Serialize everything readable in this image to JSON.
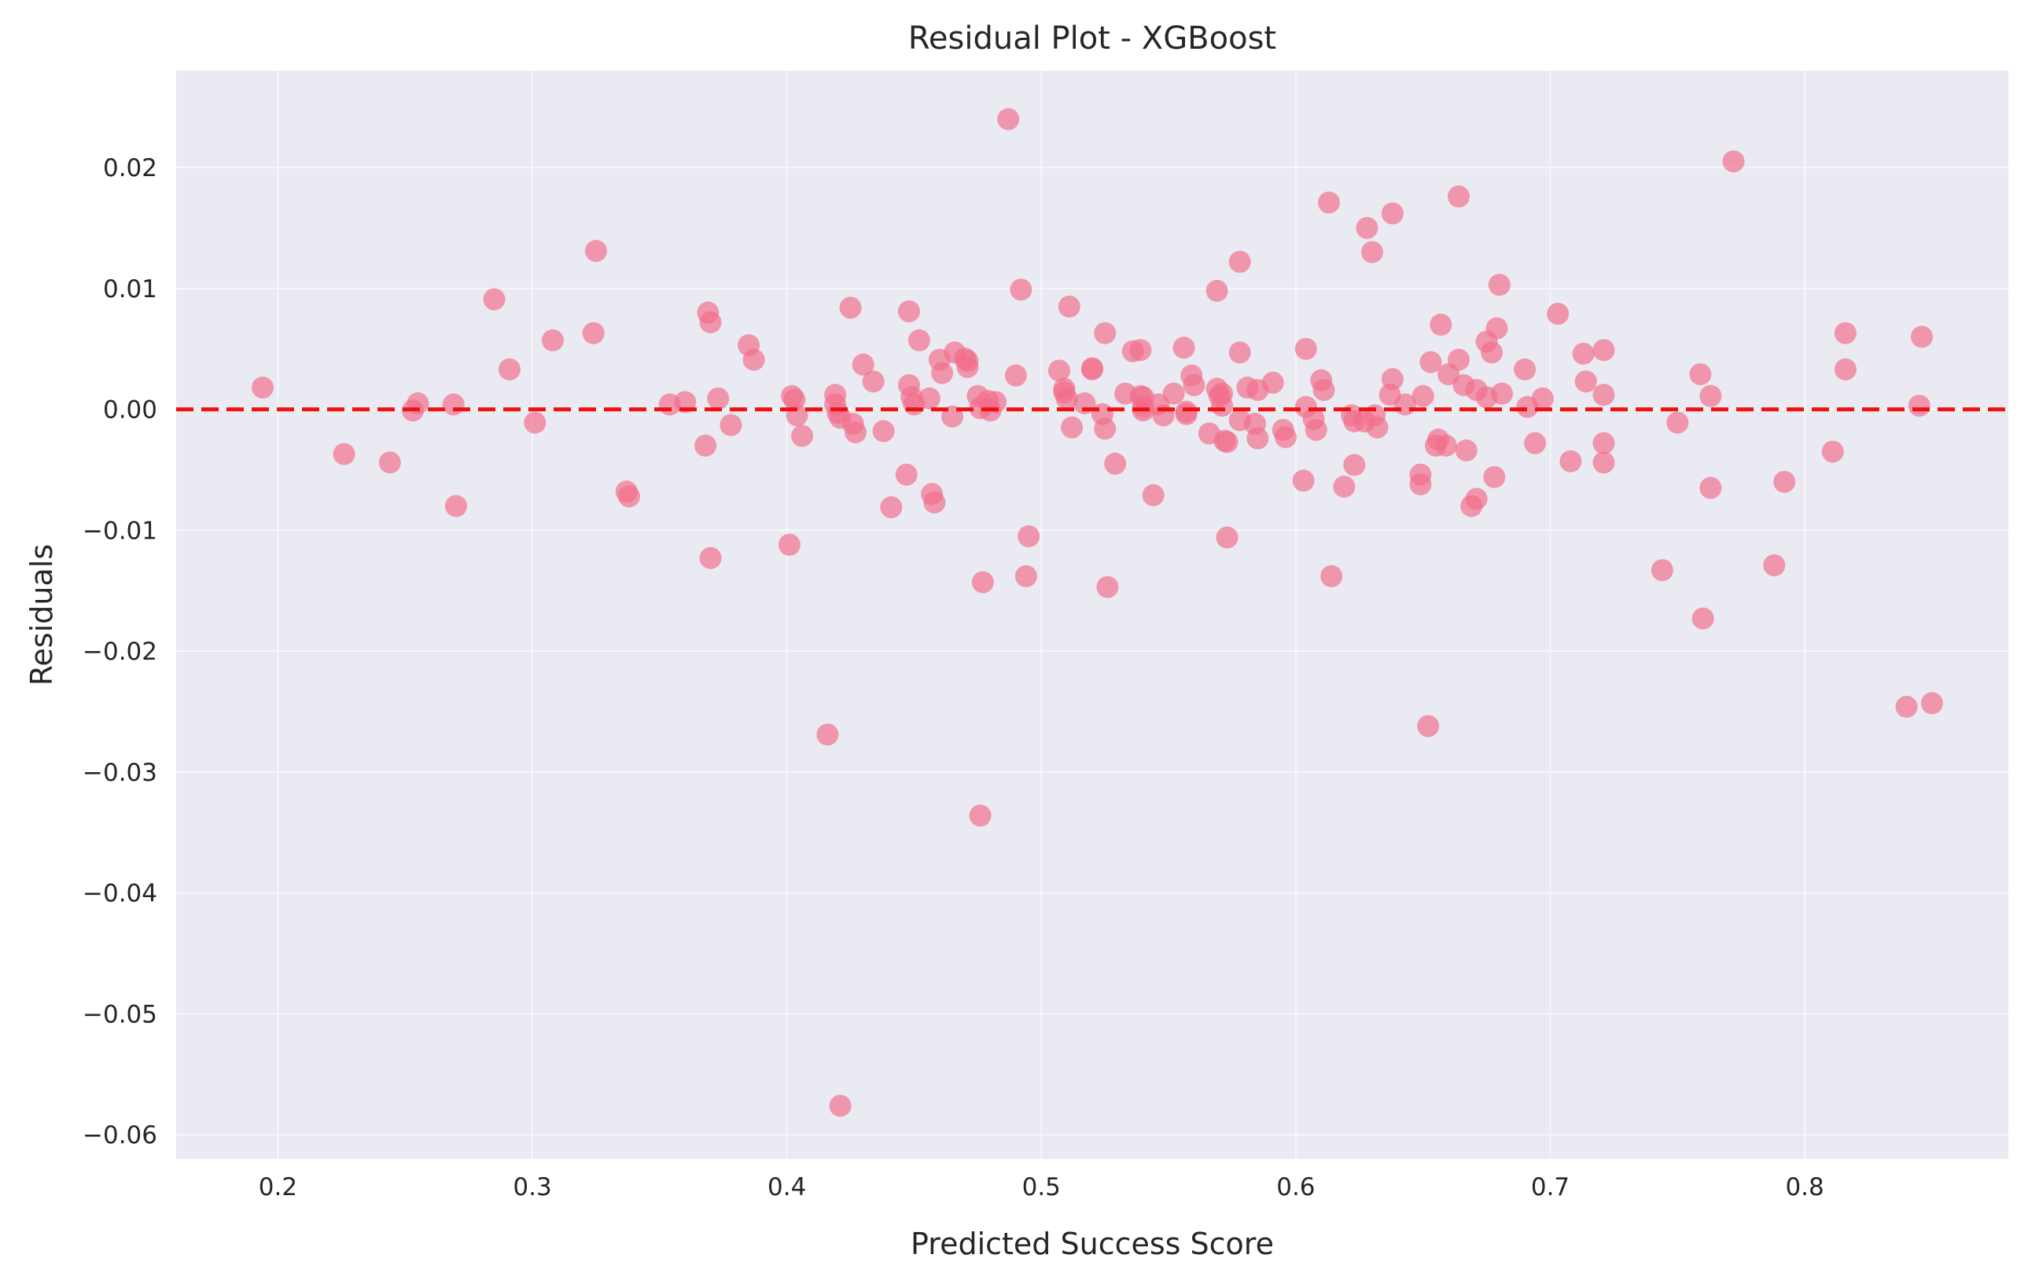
{
  "chart_data": {
    "type": "scatter",
    "title": "Residual Plot - XGBoost",
    "xlabel": "Predicted Success Score",
    "ylabel": "Residuals",
    "xlim": [
      0.16,
      0.88
    ],
    "ylim": [
      -0.062,
      0.028
    ],
    "x_ticks": [
      0.2,
      0.3,
      0.4,
      0.5,
      0.6,
      0.7,
      0.8
    ],
    "x_tick_labels": [
      "0.2",
      "0.3",
      "0.4",
      "0.5",
      "0.6",
      "0.7",
      "0.8"
    ],
    "y_ticks": [
      0.02,
      0.01,
      0.0,
      -0.01,
      -0.02,
      -0.03,
      -0.04,
      -0.05,
      -0.06
    ],
    "y_tick_labels": [
      "0.02",
      "0.01",
      "0.00",
      "−0.01",
      "−0.02",
      "−0.03",
      "−0.04",
      "−0.05",
      "−0.06"
    ],
    "grid": true,
    "reference_line": {
      "y": 0.0,
      "style": "dashed",
      "color": "#ee1111"
    },
    "background_color": "#eaeaf2",
    "point_color": "#f26d8a",
    "points": [
      [
        0.194,
        0.0018
      ],
      [
        0.226,
        -0.0037
      ],
      [
        0.244,
        -0.0044
      ],
      [
        0.253,
        -0.0001
      ],
      [
        0.255,
        0.0005
      ],
      [
        0.269,
        0.0004
      ],
      [
        0.27,
        -0.008
      ],
      [
        0.285,
        0.0091
      ],
      [
        0.291,
        0.0033
      ],
      [
        0.301,
        -0.0011
      ],
      [
        0.308,
        0.0057
      ],
      [
        0.324,
        0.0063
      ],
      [
        0.325,
        0.0131
      ],
      [
        0.337,
        -0.0068
      ],
      [
        0.338,
        -0.0072
      ],
      [
        0.354,
        0.0004
      ],
      [
        0.36,
        0.0006
      ],
      [
        0.368,
        -0.003
      ],
      [
        0.369,
        0.008
      ],
      [
        0.37,
        0.0072
      ],
      [
        0.37,
        -0.0123
      ],
      [
        0.373,
        0.0009
      ],
      [
        0.378,
        -0.0013
      ],
      [
        0.385,
        0.0053
      ],
      [
        0.387,
        0.0041
      ],
      [
        0.401,
        -0.0112
      ],
      [
        0.402,
        0.0011
      ],
      [
        0.403,
        0.0008
      ],
      [
        0.404,
        -0.0005
      ],
      [
        0.406,
        -0.0022
      ],
      [
        0.416,
        -0.0269
      ],
      [
        0.419,
        0.0012
      ],
      [
        0.419,
        0.0004
      ],
      [
        0.42,
        -0.0003
      ],
      [
        0.421,
        -0.0007
      ],
      [
        0.421,
        -0.0576
      ],
      [
        0.425,
        0.0084
      ],
      [
        0.426,
        -0.0012
      ],
      [
        0.427,
        -0.0019
      ],
      [
        0.43,
        0.0037
      ],
      [
        0.434,
        0.0023
      ],
      [
        0.438,
        -0.0018
      ],
      [
        0.441,
        -0.0081
      ],
      [
        0.447,
        -0.0054
      ],
      [
        0.448,
        0.0081
      ],
      [
        0.448,
        0.002
      ],
      [
        0.449,
        0.001
      ],
      [
        0.45,
        0.0004
      ],
      [
        0.452,
        0.0057
      ],
      [
        0.456,
        0.0009
      ],
      [
        0.457,
        -0.007
      ],
      [
        0.458,
        -0.0077
      ],
      [
        0.46,
        0.0041
      ],
      [
        0.461,
        0.003
      ],
      [
        0.465,
        -0.0006
      ],
      [
        0.466,
        0.0047
      ],
      [
        0.47,
        0.0042
      ],
      [
        0.471,
        0.004
      ],
      [
        0.471,
        0.0035
      ],
      [
        0.475,
        0.0011
      ],
      [
        0.476,
        0.0001
      ],
      [
        0.476,
        -0.0336
      ],
      [
        0.477,
        -0.0143
      ],
      [
        0.479,
        0.0007
      ],
      [
        0.48,
        -0.0001
      ],
      [
        0.482,
        0.0006
      ],
      [
        0.487,
        0.024
      ],
      [
        0.49,
        0.0028
      ],
      [
        0.492,
        0.0099
      ],
      [
        0.494,
        -0.0138
      ],
      [
        0.495,
        -0.0105
      ],
      [
        0.507,
        0.0032
      ],
      [
        0.509,
        0.0017
      ],
      [
        0.509,
        0.0014
      ],
      [
        0.51,
        0.0009
      ],
      [
        0.511,
        0.0085
      ],
      [
        0.512,
        -0.0015
      ],
      [
        0.517,
        0.0005
      ],
      [
        0.52,
        0.0034
      ],
      [
        0.52,
        0.0033
      ],
      [
        0.524,
        -0.0004
      ],
      [
        0.525,
        0.0063
      ],
      [
        0.525,
        -0.0016
      ],
      [
        0.526,
        -0.0147
      ],
      [
        0.529,
        -0.0045
      ],
      [
        0.533,
        0.0013
      ],
      [
        0.536,
        0.0048
      ],
      [
        0.539,
        0.0011
      ],
      [
        0.539,
        0.0049
      ],
      [
        0.54,
        0.001
      ],
      [
        0.54,
        0.0002
      ],
      [
        0.54,
        -0.0001
      ],
      [
        0.544,
        -0.0071
      ],
      [
        0.546,
        0.0004
      ],
      [
        0.548,
        -0.0005
      ],
      [
        0.552,
        0.0013
      ],
      [
        0.556,
        0.0051
      ],
      [
        0.557,
        -0.0002
      ],
      [
        0.557,
        -0.0004
      ],
      [
        0.559,
        0.0028
      ],
      [
        0.56,
        0.002
      ],
      [
        0.566,
        -0.002
      ],
      [
        0.569,
        0.0098
      ],
      [
        0.569,
        0.0017
      ],
      [
        0.57,
        0.0011
      ],
      [
        0.571,
        0.0013
      ],
      [
        0.571,
        0.0003
      ],
      [
        0.572,
        -0.0026
      ],
      [
        0.573,
        -0.0027
      ],
      [
        0.573,
        -0.0106
      ],
      [
        0.578,
        0.0122
      ],
      [
        0.578,
        0.0047
      ],
      [
        0.578,
        -0.0009
      ],
      [
        0.581,
        0.0018
      ],
      [
        0.584,
        -0.0012
      ],
      [
        0.585,
        0.0016
      ],
      [
        0.585,
        -0.0024
      ],
      [
        0.591,
        0.0022
      ],
      [
        0.595,
        -0.0017
      ],
      [
        0.596,
        -0.0023
      ],
      [
        0.603,
        -0.0059
      ],
      [
        0.604,
        0.0002
      ],
      [
        0.604,
        0.005
      ],
      [
        0.607,
        -0.0008
      ],
      [
        0.608,
        -0.0017
      ],
      [
        0.61,
        0.0024
      ],
      [
        0.611,
        0.0016
      ],
      [
        0.613,
        0.0171
      ],
      [
        0.614,
        -0.0138
      ],
      [
        0.619,
        -0.0064
      ],
      [
        0.622,
        -0.0005
      ],
      [
        0.623,
        -0.0046
      ],
      [
        0.623,
        -0.001
      ],
      [
        0.627,
        -0.001
      ],
      [
        0.628,
        0.015
      ],
      [
        0.63,
        0.013
      ],
      [
        0.631,
        -0.0005
      ],
      [
        0.632,
        -0.0015
      ],
      [
        0.637,
        0.0012
      ],
      [
        0.638,
        0.0025
      ],
      [
        0.638,
        0.0162
      ],
      [
        0.643,
        0.0004
      ],
      [
        0.649,
        -0.0054
      ],
      [
        0.649,
        -0.0062
      ],
      [
        0.65,
        0.0011
      ],
      [
        0.652,
        -0.0262
      ],
      [
        0.653,
        0.0039
      ],
      [
        0.655,
        -0.003
      ],
      [
        0.656,
        -0.0025
      ],
      [
        0.657,
        0.007
      ],
      [
        0.659,
        -0.003
      ],
      [
        0.66,
        0.0029
      ],
      [
        0.664,
        0.0041
      ],
      [
        0.664,
        0.0176
      ],
      [
        0.666,
        0.002
      ],
      [
        0.667,
        -0.0034
      ],
      [
        0.669,
        -0.008
      ],
      [
        0.671,
        -0.0074
      ],
      [
        0.671,
        0.0016
      ],
      [
        0.675,
        0.001
      ],
      [
        0.675,
        0.0056
      ],
      [
        0.677,
        0.0047
      ],
      [
        0.678,
        -0.0056
      ],
      [
        0.679,
        0.0067
      ],
      [
        0.68,
        0.0103
      ],
      [
        0.681,
        0.0013
      ],
      [
        0.69,
        0.0033
      ],
      [
        0.691,
        0.0002
      ],
      [
        0.694,
        -0.0028
      ],
      [
        0.697,
        0.0009
      ],
      [
        0.703,
        0.0079
      ],
      [
        0.708,
        -0.0043
      ],
      [
        0.713,
        0.0046
      ],
      [
        0.714,
        0.0023
      ],
      [
        0.721,
        0.0012
      ],
      [
        0.721,
        0.0049
      ],
      [
        0.721,
        -0.0028
      ],
      [
        0.721,
        -0.0044
      ],
      [
        0.744,
        -0.0133
      ],
      [
        0.75,
        -0.0011
      ],
      [
        0.759,
        0.0029
      ],
      [
        0.76,
        -0.0173
      ],
      [
        0.763,
        0.0011
      ],
      [
        0.763,
        -0.0065
      ],
      [
        0.772,
        0.0205
      ],
      [
        0.788,
        -0.0129
      ],
      [
        0.792,
        -0.006
      ],
      [
        0.811,
        -0.0035
      ],
      [
        0.816,
        0.0033
      ],
      [
        0.816,
        0.0063
      ],
      [
        0.84,
        -0.0246
      ],
      [
        0.845,
        0.0003
      ],
      [
        0.846,
        0.006
      ],
      [
        0.85,
        -0.0243
      ]
    ]
  }
}
